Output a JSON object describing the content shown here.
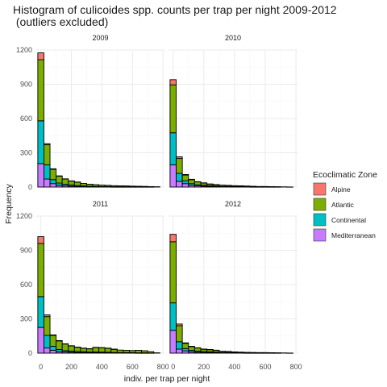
{
  "chart_data": {
    "type": "bar",
    "subtype": "stacked-histogram-facets",
    "title_line1": "Histogram of culicoides spp. counts per trap per night 2009-2012",
    "title_line2": " (outliers excluded)",
    "xlabel": "indiv. per trap per night",
    "ylabel": "Frequency",
    "xlim": [
      -30,
      810
    ],
    "ylim": [
      0,
      1200
    ],
    "x_ticks": [
      0,
      200,
      400,
      600,
      800
    ],
    "y_ticks": [
      0,
      300,
      600,
      900,
      1200
    ],
    "bin_width": 40,
    "bin_centers": [
      0,
      40,
      80,
      120,
      160,
      200,
      240,
      280,
      320,
      360,
      400,
      440,
      480,
      520,
      560,
      600,
      640,
      680,
      720,
      760
    ],
    "grid": true,
    "legend_position": "right",
    "legend": {
      "title": "Ecoclimatic Zone",
      "items": [
        {
          "name": "Alpine",
          "color": "#F8766D"
        },
        {
          "name": "Atlantic",
          "color": "#7CAE00"
        },
        {
          "name": "Continental",
          "color": "#00BFC4"
        },
        {
          "name": "Mediterranean",
          "color": "#C77CFF"
        }
      ]
    },
    "stack_order": [
      "Mediterranean",
      "Continental",
      "Atlantic",
      "Alpine"
    ],
    "panels": [
      {
        "label": "2009",
        "series": [
          {
            "name": "Mediterranean",
            "values": [
              205,
              70,
              30,
              15,
              10,
              8,
              5,
              3,
              2,
              2,
              2,
              2,
              1,
              1,
              1,
              1,
              1,
              1,
              0,
              0
            ]
          },
          {
            "name": "Continental",
            "values": [
              375,
              125,
              35,
              20,
              15,
              10,
              8,
              7,
              5,
              4,
              3,
              3,
              2,
              2,
              2,
              1,
              1,
              1,
              1,
              0
            ]
          },
          {
            "name": "Atlantic",
            "values": [
              535,
              175,
              90,
              60,
              45,
              35,
              30,
              22,
              18,
              15,
              12,
              10,
              9,
              8,
              7,
              6,
              5,
              4,
              3,
              3
            ]
          },
          {
            "name": "Alpine",
            "values": [
              60,
              10,
              5,
              3,
              2,
              1,
              1,
              0,
              0,
              0,
              0,
              0,
              0,
              0,
              0,
              0,
              0,
              0,
              0,
              0
            ]
          }
        ]
      },
      {
        "label": "2010",
        "series": [
          {
            "name": "Mediterranean",
            "values": [
              195,
              50,
              30,
              15,
              10,
              8,
              5,
              4,
              3,
              3,
              2,
              2,
              2,
              1,
              1,
              1,
              1,
              0,
              0,
              0
            ]
          },
          {
            "name": "Continental",
            "values": [
              280,
              70,
              25,
              15,
              10,
              8,
              6,
              5,
              4,
              4,
              3,
              3,
              2,
              2,
              1,
              1,
              1,
              1,
              0,
              0
            ]
          },
          {
            "name": "Atlantic",
            "values": [
              420,
              130,
              50,
              35,
              25,
              20,
              15,
              12,
              10,
              8,
              7,
              6,
              5,
              4,
              3,
              3,
              2,
              2,
              2,
              1
            ]
          },
          {
            "name": "Alpine",
            "values": [
              45,
              15,
              5,
              3,
              2,
              1,
              1,
              1,
              0,
              0,
              0,
              0,
              0,
              0,
              0,
              0,
              0,
              0,
              0,
              0
            ]
          }
        ]
      },
      {
        "label": "2011",
        "series": [
          {
            "name": "Mediterranean",
            "values": [
              225,
              45,
              25,
              12,
              10,
              8,
              6,
              5,
              4,
              4,
              4,
              3,
              2,
              2,
              2,
              2,
              1,
              1,
              0,
              0
            ]
          },
          {
            "name": "Continental",
            "values": [
              270,
              110,
              35,
              20,
              12,
              10,
              8,
              8,
              6,
              6,
              5,
              5,
              4,
              3,
              3,
              3,
              2,
              2,
              1,
              0
            ]
          },
          {
            "name": "Atlantic",
            "values": [
              465,
              165,
              95,
              75,
              58,
              45,
              38,
              30,
              28,
              40,
              38,
              35,
              28,
              22,
              20,
              18,
              22,
              18,
              12,
              3
            ]
          },
          {
            "name": "Alpine",
            "values": [
              60,
              15,
              5,
              3,
              2,
              2,
              1,
              1,
              1,
              1,
              1,
              1,
              1,
              0,
              0,
              0,
              0,
              0,
              0,
              0
            ]
          }
        ]
      },
      {
        "label": "2012",
        "series": [
          {
            "name": "Mediterranean",
            "values": [
              200,
              35,
              20,
              10,
              8,
              6,
              5,
              4,
              3,
              3,
              2,
              2,
              1,
              1,
              1,
              1,
              1,
              0,
              0,
              0
            ]
          },
          {
            "name": "Continental",
            "values": [
              240,
              65,
              20,
              15,
              10,
              8,
              6,
              5,
              4,
              4,
              3,
              2,
              2,
              2,
              1,
              1,
              1,
              1,
              0,
              0
            ]
          },
          {
            "name": "Atlantic",
            "values": [
              535,
              140,
              45,
              32,
              27,
              20,
              20,
              16,
              10,
              8,
              6,
              5,
              4,
              3,
              3,
              3,
              2,
              2,
              2,
              1
            ]
          },
          {
            "name": "Alpine",
            "values": [
              65,
              15,
              5,
              3,
              2,
              2,
              1,
              1,
              0,
              0,
              0,
              0,
              0,
              0,
              0,
              0,
              0,
              0,
              0,
              0
            ]
          }
        ]
      }
    ]
  }
}
